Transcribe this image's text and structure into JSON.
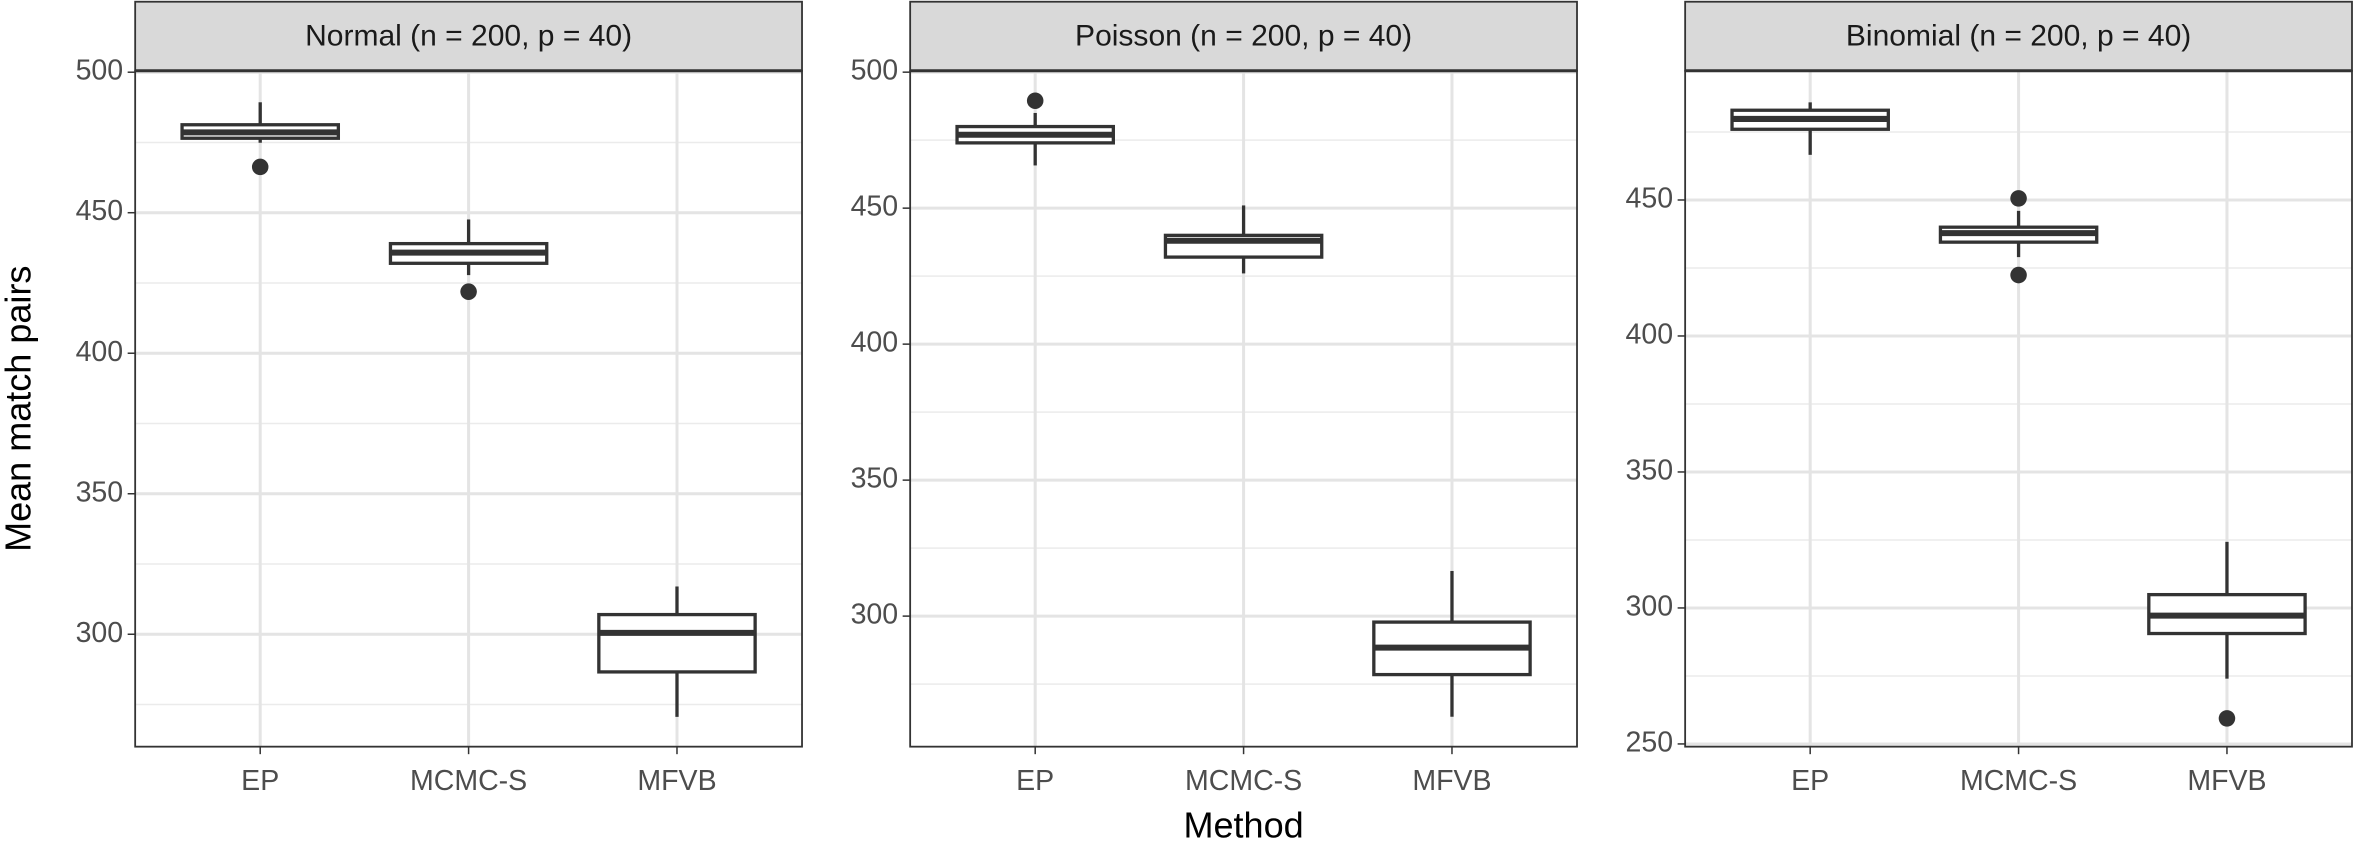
{
  "y_label": "Mean match pairs",
  "x_label": "Method",
  "chart_data": [
    {
      "type": "box",
      "title": "Normal (n = 200, p = 40)",
      "categories": [
        "EP",
        "MCMC-S",
        "MFVB"
      ],
      "boxes": [
        {
          "min": 474.9,
          "q1": 476.5,
          "median": 478.6,
          "q3": 481.3,
          "max": 489.3,
          "outliers": [
            466.3
          ]
        },
        {
          "min": 427.8,
          "q1": 432,
          "median": 435.8,
          "q3": 439,
          "max": 447.6,
          "outliers": [
            421.9
          ]
        },
        {
          "min": 270.6,
          "q1": 286.6,
          "median": 300.5,
          "q3": 307,
          "max": 317,
          "outliers": []
        }
      ],
      "ylim": [
        260,
        500.5
      ],
      "yticks": [
        300,
        350,
        400,
        450,
        500
      ],
      "minor_yticks": [
        275,
        325,
        375,
        425,
        475
      ],
      "grid": true,
      "color": "#333333"
    },
    {
      "type": "box",
      "title": "Poisson (n = 200, p = 40)",
      "categories": [
        "EP",
        "MCMC-S",
        "MFVB"
      ],
      "boxes": [
        {
          "min": 465.7,
          "q1": 474,
          "median": 477,
          "q3": 480,
          "max": 485,
          "outliers": [
            489.5
          ]
        },
        {
          "min": 426,
          "q1": 432,
          "median": 438,
          "q3": 440,
          "max": 451,
          "outliers": []
        },
        {
          "min": 263,
          "q1": 278.5,
          "median": 288.4,
          "q3": 297.8,
          "max": 316.6,
          "outliers": []
        }
      ],
      "ylim": [
        252,
        500.5
      ],
      "yticks": [
        300,
        350,
        400,
        450,
        500
      ],
      "minor_yticks": [
        275,
        325,
        375,
        425,
        475
      ],
      "grid": true,
      "color": "#333333"
    },
    {
      "type": "box",
      "title": "Binomial (n = 200, p = 40)",
      "categories": [
        "EP",
        "MCMC-S",
        "MFVB"
      ],
      "boxes": [
        {
          "min": 466.6,
          "q1": 476,
          "median": 479.8,
          "q3": 483,
          "max": 485.9,
          "outliers": []
        },
        {
          "min": 429,
          "q1": 434.5,
          "median": 437.8,
          "q3": 440,
          "max": 446,
          "outliers": [
            450.6,
            422.4
          ]
        },
        {
          "min": 274,
          "q1": 290.6,
          "median": 297.2,
          "q3": 304.9,
          "max": 324.3,
          "outliers": [
            259.4
          ]
        }
      ],
      "ylim": [
        249,
        497.5
      ],
      "yticks": [
        250,
        300,
        350,
        400,
        450
      ],
      "minor_yticks": [
        275,
        325,
        375,
        425,
        475
      ],
      "grid": true,
      "color": "#333333"
    }
  ]
}
